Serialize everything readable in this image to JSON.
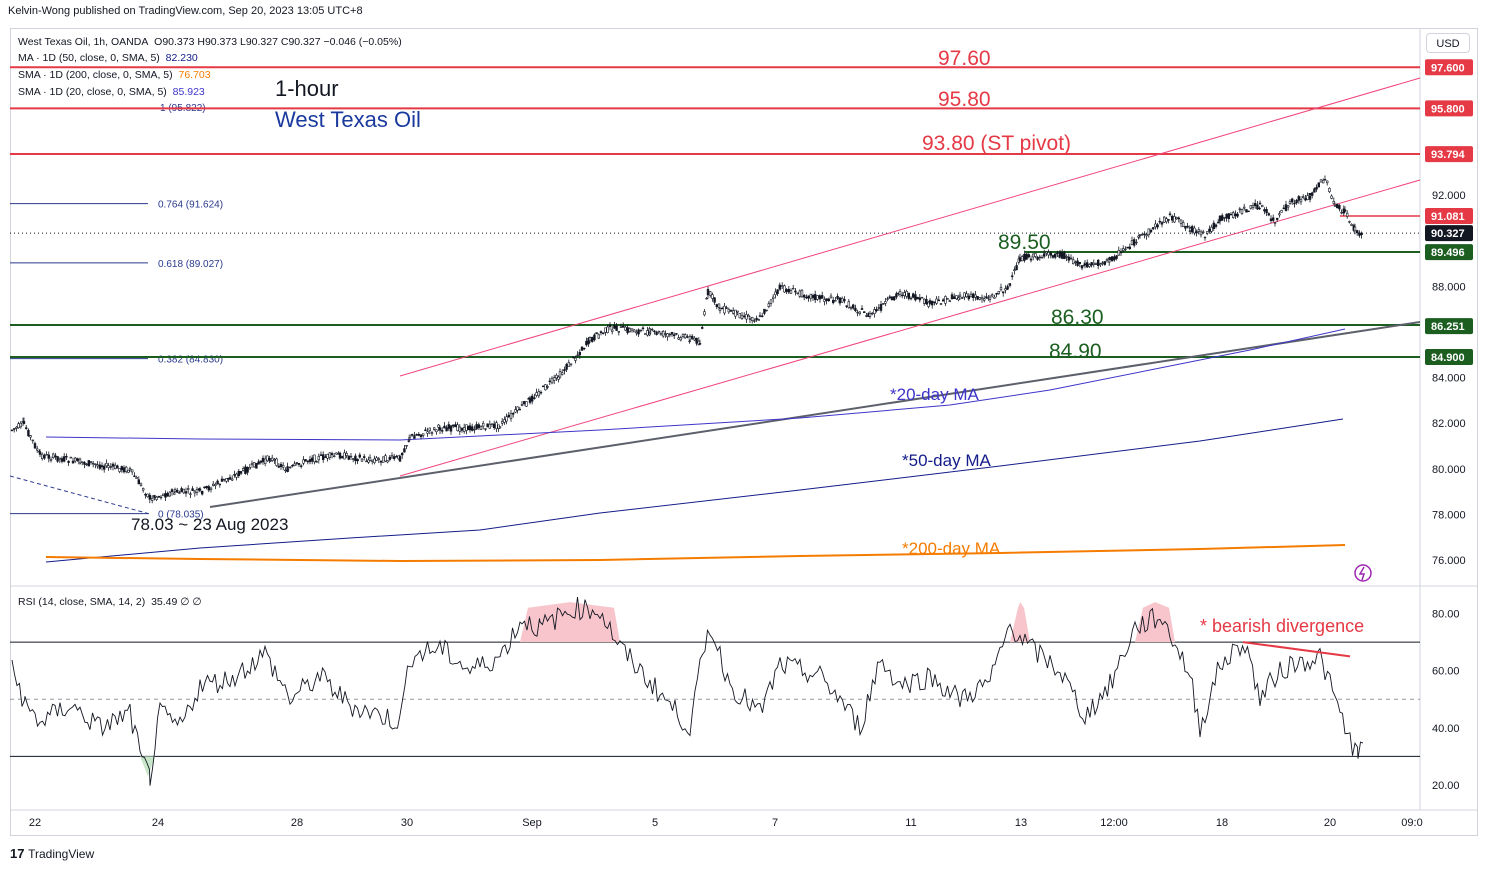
{
  "header": {
    "published_by": "Kelvin-Wong published on TradingView.com, Sep 20, 2023 13:05 UTC+8"
  },
  "legend": {
    "symbol_line": "West Texas Oil, 1h, OANDA",
    "ohlc": "O90.373  H90.373  L90.327  C90.327  −0.046 (−0.05%)",
    "ma50": {
      "label": "MA · 1D (50, close, 0, SMA, 5)",
      "value": "82.230",
      "color": "#131c8a"
    },
    "sma200": {
      "label": "SMA · 1D (200, close, 0, SMA, 5)",
      "value": "76.703",
      "color": "#f57c00"
    },
    "sma20": {
      "label": "SMA · 1D (20, close, 0, SMA, 5)",
      "value": "85.923",
      "color": "#3f35c9"
    }
  },
  "currency_button": "USD",
  "titles": {
    "timeframe": "1-hour",
    "instrument": "West Texas Oil"
  },
  "price_axis": {
    "ticks": [
      "92.000",
      "88.000",
      "84.000",
      "82.000",
      "80.000",
      "78.000",
      "76.000"
    ],
    "tick_values": [
      92,
      88,
      84,
      82,
      80,
      78,
      76
    ]
  },
  "price_tags": [
    {
      "label": "97.600",
      "value": 97.6,
      "bg": "#e53945",
      "fg": "#ffffff"
    },
    {
      "label": "95.800",
      "value": 95.8,
      "bg": "#e53945",
      "fg": "#ffffff"
    },
    {
      "label": "93.794",
      "value": 93.794,
      "bg": "#e53945",
      "fg": "#ffffff"
    },
    {
      "label": "91.081",
      "value": 91.081,
      "bg": "#e53945",
      "fg": "#ffffff"
    },
    {
      "label": "90.327",
      "value": 90.327,
      "bg": "#131722",
      "fg": "#ffffff"
    },
    {
      "label": "89.496",
      "value": 89.496,
      "bg": "#1b5e20",
      "fg": "#ffffff"
    },
    {
      "label": "86.251",
      "value": 86.251,
      "bg": "#1b5e20",
      "fg": "#ffffff"
    },
    {
      "label": "84.900",
      "value": 84.9,
      "bg": "#1b5e20",
      "fg": "#ffffff"
    }
  ],
  "levels": [
    {
      "label": "97.60",
      "value": 97.6,
      "color": "#e53945"
    },
    {
      "label": "95.80",
      "value": 95.8,
      "color": "#e53945"
    },
    {
      "label": "93.80 (ST pivot)",
      "value": 93.8,
      "color": "#e53945"
    },
    {
      "label": "89.50",
      "value": 89.5,
      "color": "#1b5e20"
    },
    {
      "label": "86.30",
      "value": 86.3,
      "color": "#1b5e20"
    },
    {
      "label": "84.90",
      "value": 84.9,
      "color": "#1b5e20"
    }
  ],
  "fib_levels": [
    {
      "label": "1 (95.822)",
      "value": 95.822
    },
    {
      "label": "0.764 (91.624)",
      "value": 91.624
    },
    {
      "label": "0.618 (89.027)",
      "value": 89.027
    },
    {
      "label": "0.382 (84.830)",
      "value": 84.83
    },
    {
      "label": "0 (78.035)",
      "value": 78.035
    }
  ],
  "annotations": {
    "low_note": "78.03 ~  23 Aug 2023",
    "ma20_label": "*20-day MA",
    "ma50_label": "*50-day MA",
    "ma200_label": "*200-day MA",
    "divergence_label": "* bearish divergence"
  },
  "x_axis": {
    "labels": [
      "22",
      "24",
      "28",
      "30",
      "Sep",
      "5",
      "7",
      "11",
      "13",
      "12:00",
      "18",
      "20",
      "09:0"
    ]
  },
  "rsi": {
    "label": "RSI (14, close, SMA, 14, 2)",
    "value": "35.49  ∅  ∅",
    "ticks": [
      "80.00",
      "60.00",
      "40.00",
      "20.00"
    ],
    "tick_values": [
      80,
      60,
      40,
      20
    ],
    "upper_band": 70,
    "mid_band": 50,
    "lower_band": 30
  },
  "chart_data": {
    "type": "candlestick",
    "title": "West Texas Oil, 1h, OANDA",
    "ylim": [
      75,
      98.5
    ],
    "price_anchors": [
      {
        "x": "Aug 21",
        "price": 82.0
      },
      {
        "x": "Aug 22",
        "price": 81.0
      },
      {
        "x": "Aug 23",
        "price": 78.3
      },
      {
        "x": "Aug 24",
        "price": 78.9
      },
      {
        "x": "Aug 25",
        "price": 79.5
      },
      {
        "x": "Aug 28",
        "price": 80.2
      },
      {
        "x": "Aug 29",
        "price": 80.4
      },
      {
        "x": "Aug 30",
        "price": 81.5
      },
      {
        "x": "Aug 31",
        "price": 82.0
      },
      {
        "x": "Sep 1",
        "price": 83.5
      },
      {
        "x": "Sep 4",
        "price": 86.1
      },
      {
        "x": "Sep 5",
        "price": 85.8
      },
      {
        "x": "Sep 6",
        "price": 87.8
      },
      {
        "x": "Sep 7",
        "price": 87.4
      },
      {
        "x": "Sep 8",
        "price": 86.8
      },
      {
        "x": "Sep 11",
        "price": 87.2
      },
      {
        "x": "Sep 12",
        "price": 89.2
      },
      {
        "x": "Sep 13",
        "price": 89.0
      },
      {
        "x": "Sep 14",
        "price": 90.0
      },
      {
        "x": "Sep 15",
        "price": 91.0
      },
      {
        "x": "Sep 18",
        "price": 91.4
      },
      {
        "x": "Sep 19",
        "price": 92.6
      },
      {
        "x": "Sep 20",
        "price": 90.327
      }
    ],
    "ma20": {
      "name": "*20-day MA",
      "start": 81.3,
      "end": 85.923
    },
    "ma50": {
      "name": "*50-day MA",
      "start": 76.0,
      "end": 82.23
    },
    "ma200": {
      "name": "*200-day MA",
      "start": 76.2,
      "end": 76.703
    },
    "rsi_last": 35.49
  }
}
